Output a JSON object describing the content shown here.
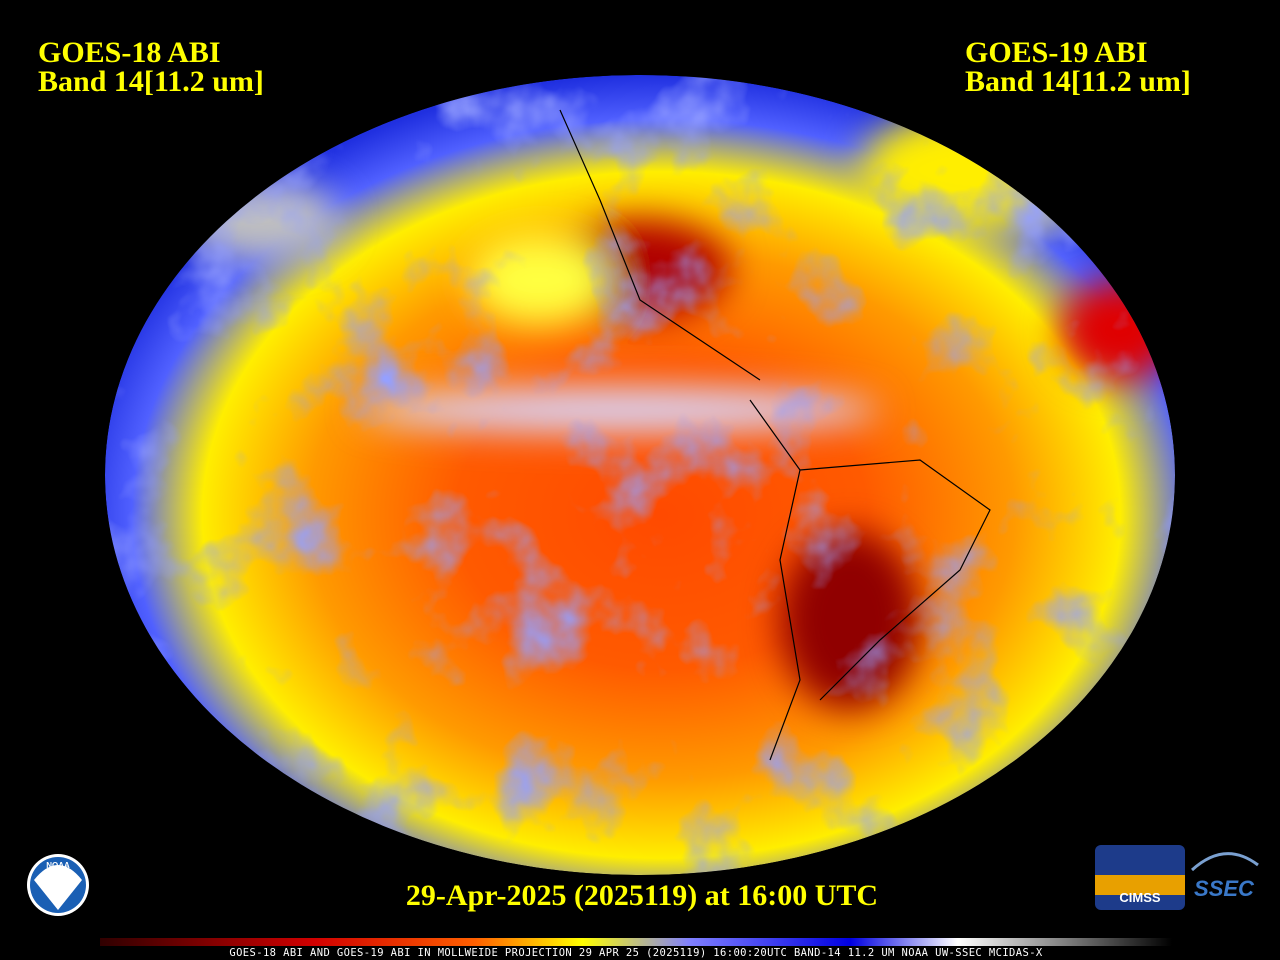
{
  "left_label": {
    "satellite": "GOES-18 ABI",
    "band": "Band 14[11.2 um]"
  },
  "right_label": {
    "satellite": "GOES-19 ABI",
    "band": "Band 14[11.2 um]"
  },
  "timestamp": "29-Apr-2025 (2025119) at 16:00 UTC",
  "footer": "GOES-18 ABI AND GOES-19 ABI IN MOLLWEIDE PROJECTION 29 APR 25 (2025119) 16:00:20UTC BAND-14 11.2 UM NOAA UW-SSEC MCIDAS-X",
  "logos": {
    "noaa": "NOAA",
    "cimss": "CIMSS",
    "ssec": "SSEC"
  }
}
